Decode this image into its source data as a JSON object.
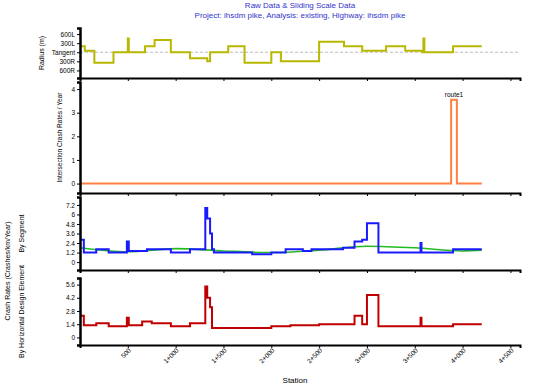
{
  "chart_data": [
    {
      "type": "line",
      "title": "Raw Data & Sliding Scale Data",
      "subtitle": "Project: ihsdm pike, Analysis: existing, Highway: ihsdm pike",
      "ylabel": "Radius (m)",
      "xlim": [
        0,
        4600
      ],
      "xticks": [
        500,
        {
          "value": 1000,
          "label": "1+000"
        },
        {
          "value": 1500,
          "label": "1+500"
        },
        {
          "value": 2000,
          "label": "2+000"
        },
        {
          "value": 2500,
          "label": "2+500"
        },
        {
          "value": 3000,
          "label": "3+000"
        },
        {
          "value": 3500,
          "label": "3+500"
        },
        {
          "value": 4000,
          "label": "4+000"
        },
        {
          "value": 4500,
          "label": "4+500"
        }
      ],
      "ylim": [
        -850,
        800
      ],
      "yticks": [
        {
          "value": 600,
          "label": "600L"
        },
        {
          "value": 300,
          "label": "300L"
        },
        {
          "value": 0,
          "label": "Tangent"
        },
        {
          "value": -300,
          "label": "300R"
        },
        {
          "value": -600,
          "label": "600R"
        }
      ],
      "tick_labels": "y",
      "series": [
        {
          "type": "step",
          "color": "#b8b800",
          "x": [
            0,
            50,
            150,
            350,
            500,
            510,
            530,
            680,
            780,
            950,
            1150,
            1330,
            1360,
            1390,
            1550,
            1720,
            2000,
            2100,
            2500,
            2760,
            2950,
            3200,
            3400,
            3580,
            3590,
            3600,
            3900,
            4200
          ],
          "values": [
            200,
            50,
            -350,
            0,
            450,
            0,
            0,
            200,
            400,
            0,
            -200,
            -300,
            0,
            0,
            200,
            -350,
            0,
            -300,
            350,
            200,
            50,
            200,
            50,
            0,
            450,
            0,
            200,
            200
          ]
        }
      ]
    },
    {
      "type": "line",
      "ylabel": "Intersection Crash Rates / Year",
      "xlim": [
        0,
        4600
      ],
      "xticks": [
        500,
        {
          "value": 1000,
          "label": "1+000"
        },
        {
          "value": 1500,
          "label": "1+500"
        },
        {
          "value": 2000,
          "label": "2+000"
        },
        {
          "value": 2500,
          "label": "2+500"
        },
        {
          "value": 3000,
          "label": "3+000"
        },
        {
          "value": 3500,
          "label": "3+500"
        },
        {
          "value": 4000,
          "label": "4+000"
        },
        {
          "value": 4500,
          "label": "4+500"
        }
      ],
      "ylim": [
        -0.4,
        4.3
      ],
      "yticks": [
        0,
        1,
        2,
        3,
        4
      ],
      "tick_labels": "y",
      "series": [
        {
          "name": "route1",
          "type": "step",
          "color": "#ff8040",
          "x": [
            0,
            3880,
            3940,
            4200
          ],
          "values": [
            0,
            3.55,
            0,
            0
          ]
        }
      ]
    },
    {
      "type": "line",
      "ylabel": "By Segment",
      "ylabel_group": "Crash Rates (Crashes/km/Year)",
      "xlim": [
        0,
        4600
      ],
      "xticks": [
        500,
        {
          "value": 1000,
          "label": "1+000"
        },
        {
          "value": 1500,
          "label": "1+500"
        },
        {
          "value": 2000,
          "label": "2+000"
        },
        {
          "value": 2500,
          "label": "2+500"
        },
        {
          "value": 3000,
          "label": "3+000"
        },
        {
          "value": 3500,
          "label": "3+500"
        },
        {
          "value": 4000,
          "label": "4+000"
        },
        {
          "value": 4500,
          "label": "4+500"
        }
      ],
      "ylim": [
        -1,
        8.2
      ],
      "yticks": [
        0,
        1.2,
        2.4,
        3.6,
        4.8,
        6,
        7.2
      ],
      "tick_labels": "y",
      "series": [
        {
          "type": "line",
          "color": "#22bb22",
          "x": [
            0,
            500,
            1000,
            1500,
            2000,
            2500,
            3000,
            3500,
            4000,
            4200
          ],
          "values": [
            1.8,
            1.3,
            1.7,
            1.4,
            1.2,
            1.5,
            2.0,
            1.8,
            1.4,
            1.5
          ]
        },
        {
          "type": "step",
          "color": "#1a1aff",
          "x": [
            0,
            40,
            170,
            300,
            490,
            510,
            530,
            700,
            800,
            950,
            1150,
            1310,
            1330,
            1360,
            1380,
            1400,
            1800,
            2000,
            2150,
            2330,
            2420,
            2750,
            2870,
            2950,
            3000,
            3120,
            3560,
            3570,
            3900,
            4200
          ],
          "values": [
            2.8,
            1.2,
            1.6,
            1.2,
            2.6,
            1.4,
            1.4,
            1.6,
            1.6,
            1.2,
            1.6,
            6.8,
            5.5,
            3.6,
            1.6,
            1.2,
            1.0,
            1.2,
            1.6,
            1.4,
            1.6,
            1.8,
            2.6,
            2.8,
            4.9,
            1.2,
            2.4,
            1.2,
            1.6,
            1.6
          ]
        }
      ]
    },
    {
      "type": "line",
      "ylabel": "By Horizontal Design Element",
      "xlabel": "Station",
      "xlim": [
        0,
        4600
      ],
      "xticks": [
        500,
        {
          "value": 1000,
          "label": "1+000"
        },
        {
          "value": 1500,
          "label": "1+500"
        },
        {
          "value": 2000,
          "label": "2+000"
        },
        {
          "value": 2500,
          "label": "2+500"
        },
        {
          "value": 3000,
          "label": "3+000"
        },
        {
          "value": 3500,
          "label": "3+500"
        },
        {
          "value": 4000,
          "label": "4+000"
        },
        {
          "value": 4500,
          "label": "4+500"
        }
      ],
      "ylim": [
        -0.8,
        6.3
      ],
      "yticks": [
        0,
        1.4,
        2.8,
        4.2,
        5.6
      ],
      "series": [
        {
          "type": "step",
          "color": "#c00000",
          "x": [
            0,
            40,
            170,
            300,
            490,
            510,
            530,
            650,
            750,
            950,
            1150,
            1310,
            1330,
            1360,
            1380,
            1400,
            1550,
            2000,
            2200,
            2500,
            2870,
            2950,
            3000,
            3120,
            3560,
            3570,
            3600,
            3900,
            4200
          ],
          "values": [
            2.3,
            1.3,
            1.5,
            1.2,
            2.1,
            1.3,
            1.3,
            1.7,
            1.5,
            1.2,
            1.5,
            5.4,
            4.2,
            3.2,
            1.0,
            1.0,
            1.0,
            1.2,
            1.3,
            1.4,
            2.3,
            1.4,
            4.5,
            1.2,
            2.1,
            1.2,
            1.2,
            1.4,
            1.4
          ]
        }
      ]
    }
  ]
}
